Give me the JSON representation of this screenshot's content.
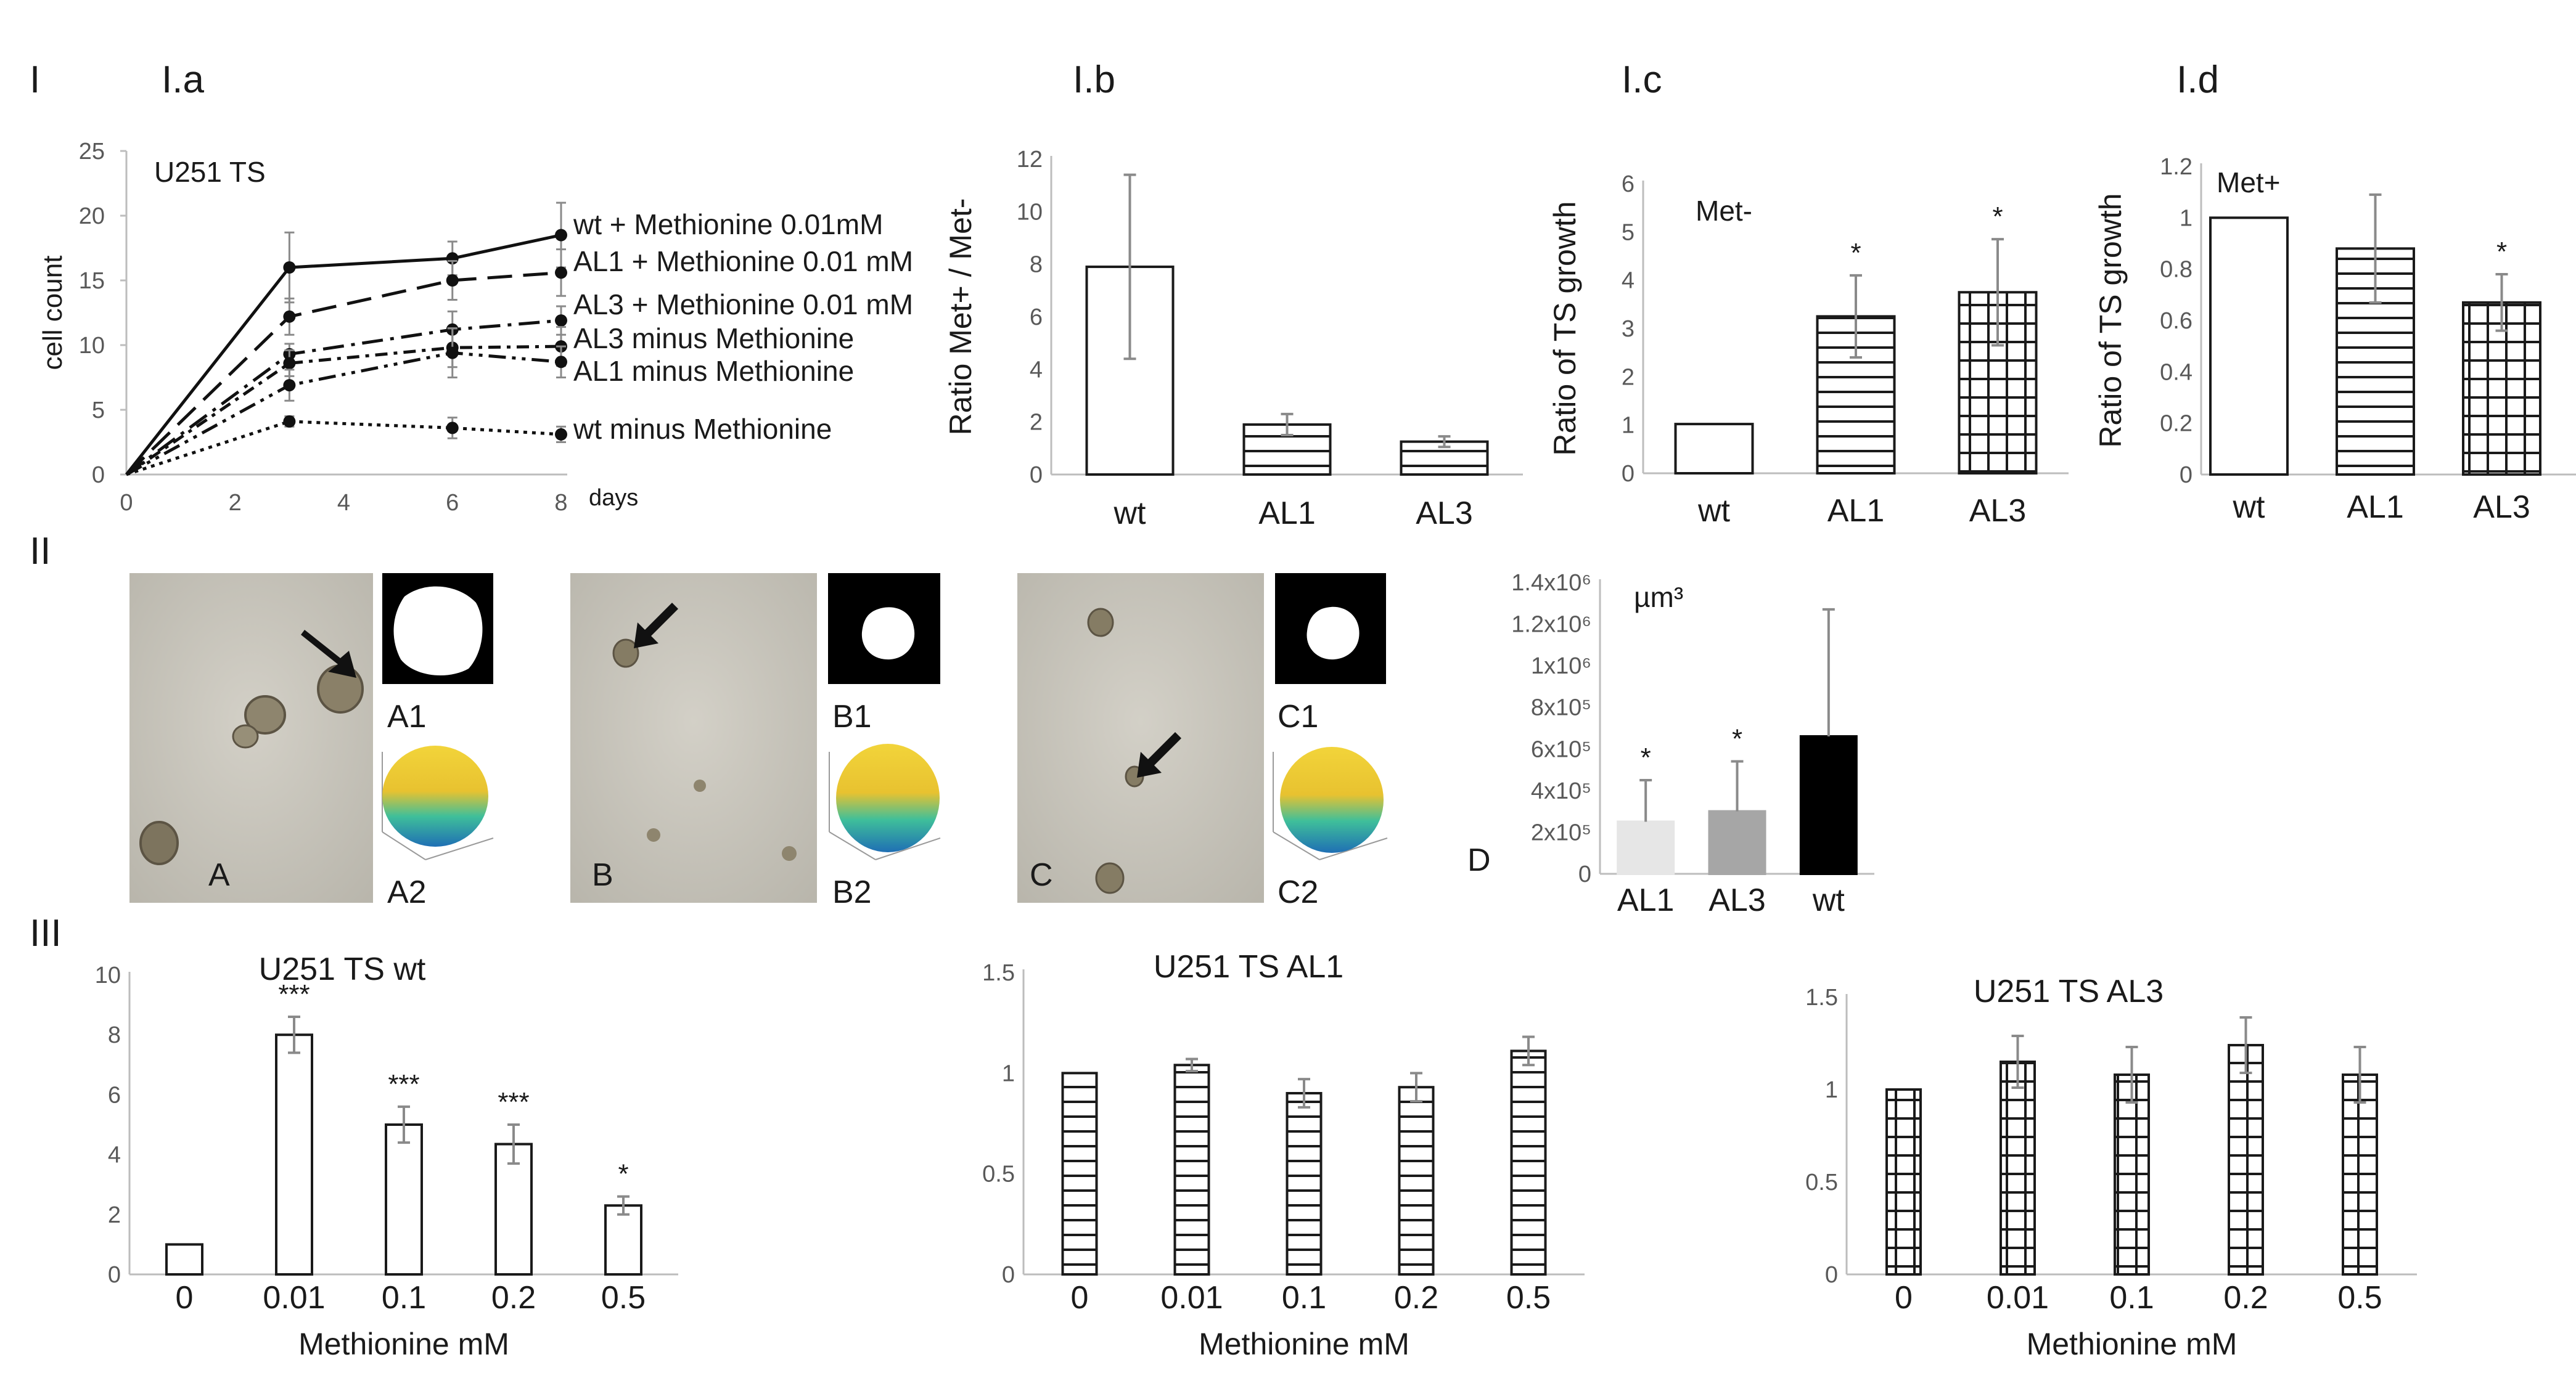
{
  "panel_labels": {
    "I": "I",
    "Ia": "I.a",
    "Ib": "I.b",
    "Ic": "I.c",
    "Id": "I.d",
    "II": "II",
    "III": "III"
  },
  "colors": {
    "axis": "#bdbdbd",
    "error": "#8a8a8a",
    "photo_bg": "#c9c6bc",
    "al1_bar": "#e6e6e6",
    "al3_bar": "#a6a6a6",
    "wt_bar": "#000000"
  },
  "chart_data": [
    {
      "id": "Ia",
      "type": "line",
      "title": "U251 TS",
      "xlabel": "days",
      "ylabel": "cell count",
      "xlim": [
        0,
        8
      ],
      "ylim": [
        0,
        25
      ],
      "xticks": [
        0,
        2,
        4,
        6,
        8
      ],
      "yticks": [
        0,
        5,
        10,
        15,
        20,
        25
      ],
      "series": [
        {
          "name": "wt + Methionine 0.01mM",
          "style": "solid",
          "x": [
            0,
            3,
            6,
            8
          ],
          "y": [
            0,
            16,
            16.7,
            18.5
          ],
          "err": [
            0,
            2.7,
            1.3,
            2.5
          ]
        },
        {
          "name": "AL1 + Methionine 0.01 mM",
          "style": "dash",
          "x": [
            0,
            3,
            6,
            8
          ],
          "y": [
            0,
            12.2,
            15,
            15.6
          ],
          "err": [
            0,
            1.4,
            1.5,
            1.8
          ]
        },
        {
          "name": "AL3 + Methionine 0.01 mM",
          "style": "dashdot",
          "x": [
            0,
            3,
            6,
            8
          ],
          "y": [
            0,
            9.3,
            11.2,
            11.9
          ],
          "err": [
            0,
            0.8,
            1.4,
            1.1
          ]
        },
        {
          "name": "AL3 minus Methionine",
          "style": "dashdot2",
          "x": [
            0,
            3,
            6,
            8
          ],
          "y": [
            0,
            8.6,
            9.8,
            9.9
          ],
          "err": [
            0,
            1,
            1.5,
            1.5
          ]
        },
        {
          "name": "AL1 minus Methionine",
          "style": "dashdot3",
          "x": [
            0,
            3,
            6,
            8
          ],
          "y": [
            0,
            6.9,
            9.4,
            8.7
          ],
          "err": [
            0,
            1.2,
            1.9,
            1.2
          ]
        },
        {
          "name": "wt minus Methionine",
          "style": "dotted",
          "x": [
            0,
            3,
            6,
            8
          ],
          "y": [
            0,
            4.1,
            3.6,
            3.1
          ],
          "err": [
            0,
            0.4,
            0.8,
            0.6
          ]
        }
      ]
    },
    {
      "id": "Ib",
      "type": "bar",
      "ylabel": "Ratio Met+ / Met-",
      "ylim": [
        0,
        12
      ],
      "yticks": [
        0,
        2,
        4,
        6,
        8,
        10,
        12
      ],
      "categories": [
        "wt",
        "AL1",
        "AL3"
      ],
      "values": [
        7.9,
        1.9,
        1.25
      ],
      "errors": [
        3.5,
        0.4,
        0.2
      ],
      "patterns": [
        "empty",
        "hlines",
        "hlines"
      ],
      "significance": [
        "",
        "",
        ""
      ]
    },
    {
      "id": "Ic",
      "type": "bar",
      "annotation": "Met-",
      "ylabel": "Ratio of TS growth",
      "ylim": [
        0,
        6
      ],
      "yticks": [
        0,
        1,
        2,
        3,
        4,
        5,
        6
      ],
      "categories": [
        "wt",
        "AL1",
        "AL3"
      ],
      "values": [
        1.02,
        3.25,
        3.75
      ],
      "errors": [
        0,
        0.85,
        1.1
      ],
      "patterns": [
        "empty",
        "hlines",
        "grid"
      ],
      "significance": [
        "",
        "*",
        "*"
      ]
    },
    {
      "id": "Id",
      "type": "bar",
      "annotation": "Met+",
      "ylabel": "Ratio of TS growth",
      "ylim": [
        0,
        1.2
      ],
      "yticks": [
        "0",
        "0.2",
        "0.4",
        "0.6",
        "0.8",
        "1",
        "1.2"
      ],
      "categories": [
        "wt",
        "AL1",
        "AL3"
      ],
      "values": [
        1.0,
        0.88,
        0.67
      ],
      "errors": [
        0,
        0.21,
        0.11
      ],
      "patterns": [
        "empty",
        "hlines",
        "grid"
      ],
      "significance": [
        "",
        "",
        "*"
      ]
    },
    {
      "id": "IID",
      "type": "bar",
      "annotation": "µm³",
      "ylim": [
        0,
        1400000
      ],
      "yticks": [
        "0",
        "2x10⁵",
        "4x10⁵",
        "6x10⁵",
        "8x10⁵",
        "1x10⁶",
        "1.2x10⁶",
        "1.4x10⁶"
      ],
      "categories": [
        "AL1",
        "AL3",
        "wt"
      ],
      "values": [
        250000,
        300000,
        660000
      ],
      "errors": [
        200000,
        240000,
        610000
      ],
      "patterns": [
        "light",
        "mid",
        "dark"
      ],
      "significance": [
        "*",
        "*",
        ""
      ],
      "panel": "D"
    },
    {
      "id": "IIIa",
      "type": "bar",
      "title": "U251 TS wt",
      "xlabel": "Methionine mM",
      "ylim": [
        0,
        10
      ],
      "yticks": [
        0,
        2,
        4,
        6,
        8,
        10
      ],
      "categories": [
        "0",
        "0.01",
        "0.1",
        "0.2",
        "0.5"
      ],
      "values": [
        1.0,
        8.0,
        5.0,
        4.35,
        2.3
      ],
      "errors": [
        0,
        0.6,
        0.6,
        0.65,
        0.3
      ],
      "patterns": [
        "empty",
        "empty",
        "empty",
        "empty",
        "empty"
      ],
      "significance": [
        "",
        "***",
        "***",
        "***",
        "*"
      ]
    },
    {
      "id": "IIIb",
      "type": "bar",
      "title": "U251 TS AL1",
      "xlabel": "Methionine mM",
      "ylim": [
        0,
        1.5
      ],
      "yticks": [
        "0",
        "0.5",
        "1",
        "1.5"
      ],
      "categories": [
        "0",
        "0.01",
        "0.1",
        "0.2",
        "0.5"
      ],
      "values": [
        1.0,
        1.04,
        0.9,
        0.93,
        1.11
      ],
      "errors": [
        0,
        0.03,
        0.07,
        0.07,
        0.07
      ],
      "patterns": [
        "hlines",
        "hlines",
        "hlines",
        "hlines",
        "hlines"
      ],
      "significance": [
        "",
        "",
        "",
        "",
        ""
      ]
    },
    {
      "id": "IIIc",
      "type": "bar",
      "title": "U251 TS AL3",
      "xlabel": "Methionine mM",
      "ylim": [
        0,
        1.5
      ],
      "yticks": [
        "0",
        "0.5",
        "1",
        "1.5"
      ],
      "categories": [
        "0",
        "0.01",
        "0.1",
        "0.2",
        "0.5"
      ],
      "values": [
        1.0,
        1.15,
        1.08,
        1.24,
        1.08
      ],
      "errors": [
        0,
        0.14,
        0.15,
        0.15,
        0.15
      ],
      "patterns": [
        "grid",
        "grid",
        "grid",
        "grid",
        "grid"
      ],
      "significance": [
        "",
        "",
        "",
        "",
        ""
      ]
    }
  ],
  "images": [
    {
      "label": "A",
      "mask": "A1",
      "surface": "A2"
    },
    {
      "label": "B",
      "mask": "B1",
      "surface": "B2"
    },
    {
      "label": "C",
      "mask": "C1",
      "surface": "C2"
    }
  ]
}
